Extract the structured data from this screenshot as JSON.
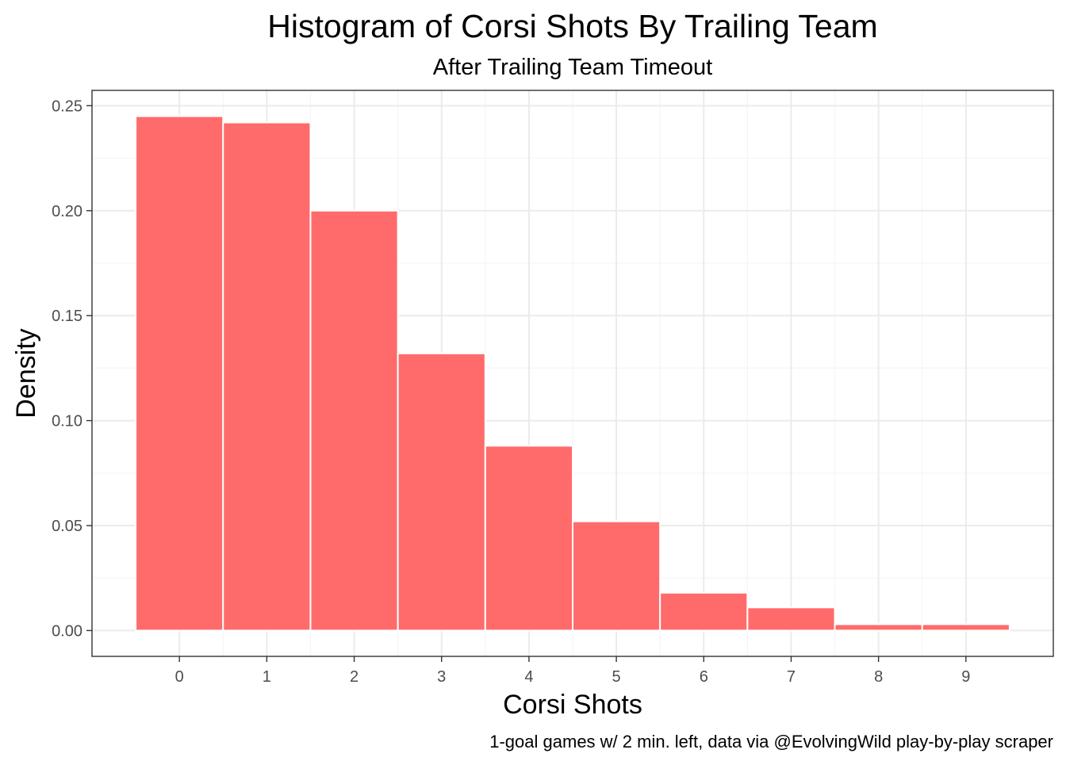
{
  "chart_data": {
    "type": "bar",
    "title": "Histogram of Corsi Shots By Trailing Team",
    "subtitle": "After Trailing Team Timeout",
    "xlabel": "Corsi Shots",
    "ylabel": "Density",
    "caption": "1-goal games w/ 2 min. left, data via @EvolvingWild play-by-play scraper",
    "categories": [
      "0",
      "1",
      "2",
      "3",
      "4",
      "5",
      "6",
      "7",
      "8",
      "9"
    ],
    "x": [
      0,
      1,
      2,
      3,
      4,
      5,
      6,
      7,
      8,
      9
    ],
    "values": [
      0.245,
      0.242,
      0.2,
      0.132,
      0.088,
      0.052,
      0.018,
      0.011,
      0.003,
      0.003
    ],
    "y_ticks": [
      "0.00",
      "0.05",
      "0.10",
      "0.15",
      "0.20",
      "0.25"
    ],
    "y_tick_values": [
      0,
      0.05,
      0.1,
      0.15,
      0.2,
      0.25
    ],
    "xlim": [
      -1,
      10
    ],
    "ylim": [
      -0.0123,
      0.2573
    ],
    "grid": true,
    "legend": "none",
    "colors": {
      "bar_fill": "#ff6b6b",
      "bar_outline": "#ffffff",
      "grid_major": "#ebebeb",
      "grid_minor": "#f5f5f5",
      "panel_border": "#333333",
      "tick_text": "#4d4d4d"
    }
  }
}
